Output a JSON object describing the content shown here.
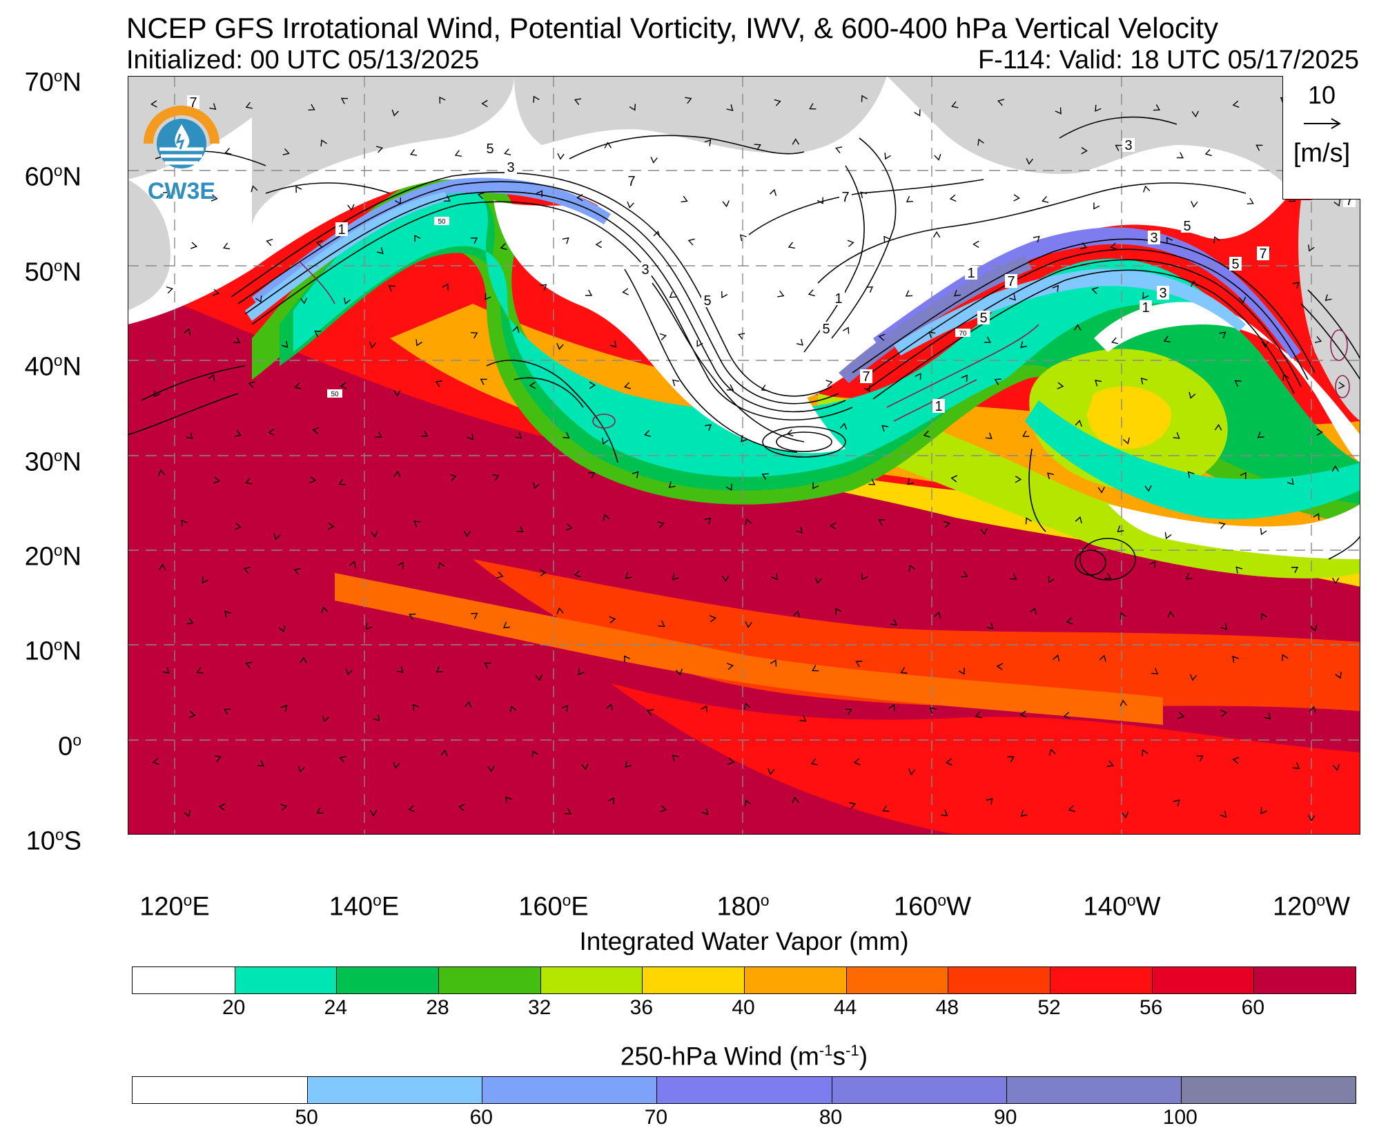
{
  "header": {
    "title": "NCEP GFS Irrotational Wind, Potential Vorticity, IWV, & 600-400 hPa Vertical Velocity",
    "initialized": "Initialized: 00 UTC 05/13/2025",
    "valid": "F-114: Valid: 18 UTC 05/17/2025"
  },
  "logo": {
    "text": "CW3E"
  },
  "reference_vector": {
    "value": "10",
    "unit": "[m/s]"
  },
  "map": {
    "lat_labels": [
      "70",
      "60",
      "50",
      "40",
      "30",
      "20",
      "10",
      "0",
      "10"
    ],
    "lat_suffix": [
      "N",
      "N",
      "N",
      "N",
      "N",
      "N",
      "N",
      "",
      "S"
    ],
    "lon_labels": [
      "120",
      "140",
      "160",
      "180",
      "160",
      "140",
      "120"
    ],
    "lon_suffix": [
      "E",
      "E",
      "E",
      "",
      "W",
      "W",
      "W"
    ],
    "contour_labels": [
      "7",
      "5",
      "3",
      "1",
      "7",
      "5",
      "3",
      "1",
      "7",
      "5",
      "1",
      "3",
      "7",
      "5",
      "3",
      "7",
      "5",
      "3",
      "1",
      "5",
      "7",
      "1",
      "7",
      "50",
      "70",
      "50"
    ]
  },
  "iwv_colorbar": {
    "title": "Integrated Water Vapor (mm)",
    "colors": [
      "#ffffff",
      "#00e5b4",
      "#00c050",
      "#44be10",
      "#b4e600",
      "#ffd600",
      "#ffa500",
      "#ff6a00",
      "#ff3a00",
      "#ff0f0f",
      "#e60026",
      "#c0003a"
    ],
    "ticks": [
      "20",
      "24",
      "28",
      "32",
      "36",
      "40",
      "44",
      "48",
      "52",
      "56",
      "60"
    ]
  },
  "wind_colorbar": {
    "title_main": "250-hPa Wind (m",
    "title_exp1": "-1",
    "title_mid": "s",
    "title_exp2": "-1",
    "title_end": ")",
    "colors": [
      "#ffffff",
      "#80c8ff",
      "#7da2fa",
      "#7d7df0",
      "#7d7de0",
      "#7d80c8",
      "#7e80a6"
    ],
    "ticks": [
      "50",
      "60",
      "70",
      "80",
      "90",
      "100"
    ]
  }
}
